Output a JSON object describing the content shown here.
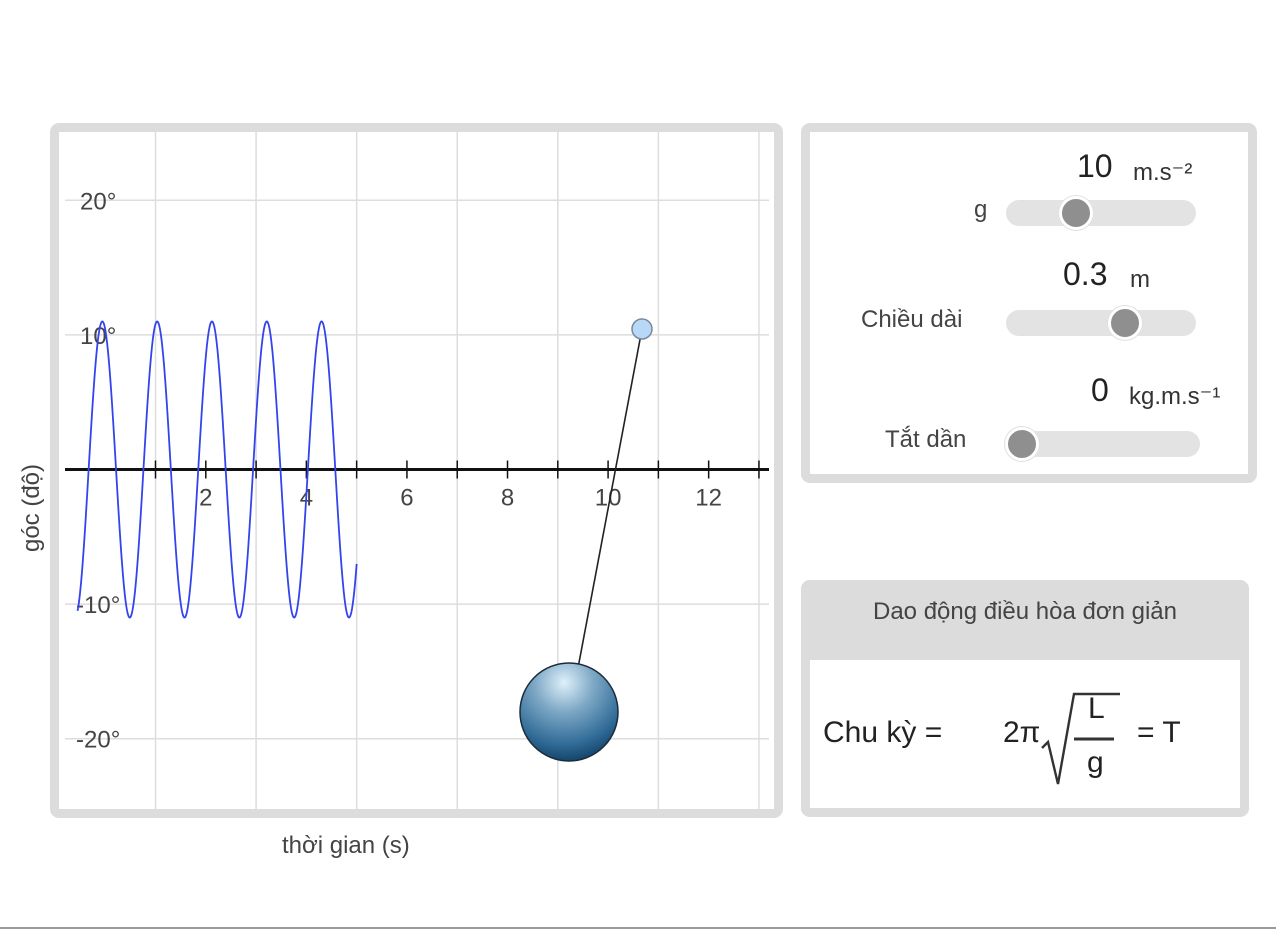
{
  "graph": {
    "xlabel": "thời gian (s)",
    "ylabel": "góc (độ)"
  },
  "chart_data": {
    "type": "line",
    "xlabel": "thời gian (s)",
    "ylabel": "góc (độ)",
    "xlim": [
      -0.8,
      13.2
    ],
    "ylim": [
      -25,
      25
    ],
    "x_ticks": [
      2,
      4,
      6,
      8,
      10,
      12
    ],
    "y_ticks": [
      -20,
      -10,
      10,
      20
    ],
    "y_tick_suffix": "°",
    "grid": true,
    "series": [
      {
        "color": "#3344ee",
        "amplitude_deg": 11,
        "period_s": 1.09,
        "t_start": -0.55,
        "t_end": 5.0,
        "x": [
          -0.55,
          -0.3,
          -0.05,
          0.2,
          0.45,
          0.7,
          0.95,
          1.2,
          1.45,
          1.7,
          1.95,
          2.2,
          2.45,
          2.7,
          2.95,
          3.2,
          3.45,
          3.7,
          3.95,
          4.2,
          4.45,
          4.7,
          5.0
        ],
        "y": [
          -10.5,
          -1.5,
          8.3,
          10.6,
          4.0,
          -5.9,
          -11.0,
          -5.1,
          6.1,
          10.9,
          3.2,
          -8.0,
          -10.2,
          -1.2,
          9.1,
          9.9,
          -0.1,
          -9.6,
          -9.4,
          1.4,
          10.6,
          8.2,
          -2.4
        ]
      }
    ]
  },
  "pendulum": {
    "bob_color": "#2f6a96",
    "pivot_color": "#b8d8f8"
  },
  "controls": {
    "g": {
      "value": "10",
      "unit": "m.s⁻²",
      "label": "g",
      "fraction": 0.3
    },
    "length": {
      "value": "0.3",
      "unit": "m",
      "label": "Chiều dài",
      "fraction": 0.73
    },
    "damping": {
      "value": "0",
      "unit": "kg.m.s⁻¹",
      "label": "Tắt dần",
      "fraction": 0.0
    }
  },
  "info": {
    "title": "Dao động điều hòa đơn giản",
    "formula_label": "Chu kỳ =",
    "two_pi": "2π",
    "numerator": "L",
    "denominator": "g",
    "result": "= T"
  }
}
